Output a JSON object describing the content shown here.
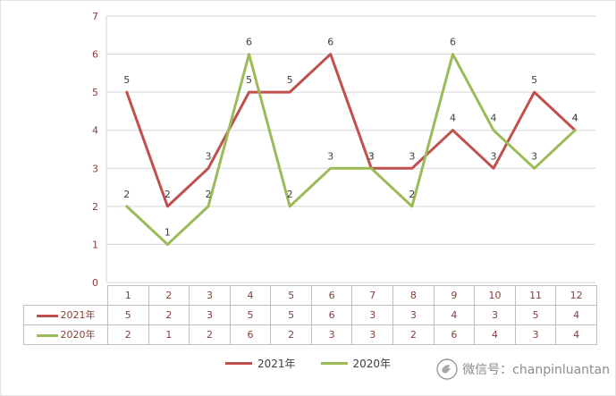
{
  "chart_data": {
    "type": "line",
    "categories": [
      "1",
      "2",
      "3",
      "4",
      "5",
      "6",
      "7",
      "8",
      "9",
      "10",
      "11",
      "12"
    ],
    "series": [
      {
        "name": "2021年",
        "color": "#C0504D",
        "values": [
          5,
          2,
          3,
          5,
          5,
          6,
          3,
          3,
          4,
          3,
          5,
          4
        ]
      },
      {
        "name": "2020年",
        "color": "#9BBB59",
        "values": [
          2,
          1,
          2,
          6,
          2,
          3,
          3,
          2,
          6,
          4,
          3,
          4
        ]
      }
    ],
    "title": "",
    "xlabel": "",
    "ylabel": "",
    "ylim": [
      0,
      7
    ],
    "ytick_step": 1,
    "grid": true,
    "data_labels": true,
    "legend_position": "bottom",
    "data_table_shown": true
  },
  "colors": {
    "grid": "#d6d6d6",
    "axis_text": "#833f38",
    "label_text": "#404040",
    "table_border": "#bfbfbf",
    "watermark_text": "#8c8c8c"
  },
  "watermark": {
    "label": "微信号：chanpinluantan"
  }
}
